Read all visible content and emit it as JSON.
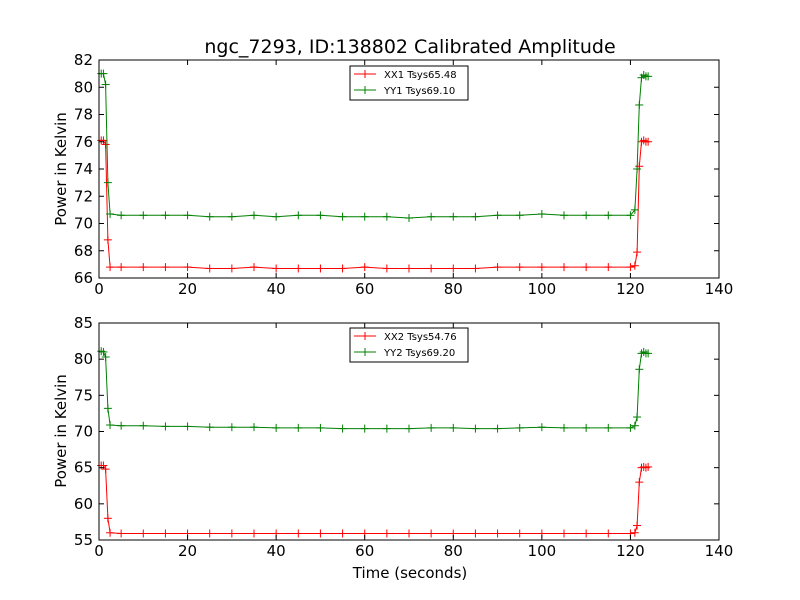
{
  "figure": {
    "title": "ngc_7293, ID:138802 Calibrated Amplitude",
    "xlabel": "Time (seconds)"
  },
  "chart_data": [
    {
      "type": "line",
      "title": "ngc_7293, ID:138802 Calibrated Amplitude",
      "xlabel": "",
      "ylabel": "Power in Kelvin",
      "xlim": [
        0,
        140
      ],
      "ylim": [
        66,
        82
      ],
      "xticks": [
        0,
        20,
        40,
        60,
        80,
        100,
        120,
        140
      ],
      "yticks": [
        66,
        68,
        70,
        72,
        74,
        76,
        78,
        80,
        82
      ],
      "grid": false,
      "legend_position": "top-center",
      "series": [
        {
          "name": "XX1 Tsys65.48",
          "color": "#ff0000",
          "marker": "plus",
          "x": [
            0.5,
            1.0,
            1.5,
            2.0,
            2.5,
            5,
            10,
            15,
            20,
            25,
            30,
            35,
            40,
            45,
            50,
            55,
            60,
            65,
            70,
            75,
            80,
            85,
            90,
            95,
            100,
            105,
            110,
            115,
            120,
            121.0,
            121.5,
            122.0,
            122.5,
            123.0,
            123.5,
            124.0
          ],
          "values": [
            76.1,
            76.1,
            75.8,
            68.8,
            66.8,
            66.8,
            66.8,
            66.8,
            66.8,
            66.7,
            66.7,
            66.8,
            66.7,
            66.7,
            66.7,
            66.7,
            66.8,
            66.7,
            66.7,
            66.7,
            66.7,
            66.7,
            66.8,
            66.8,
            66.8,
            66.8,
            66.8,
            66.8,
            66.8,
            66.9,
            67.9,
            74.2,
            76.0,
            76.1,
            76.0,
            76.0
          ]
        },
        {
          "name": "YY1 Tsys69.10",
          "color": "#008000",
          "marker": "plus",
          "x": [
            0.5,
            1.0,
            1.5,
            2.0,
            2.5,
            5,
            10,
            15,
            20,
            25,
            30,
            35,
            40,
            45,
            50,
            55,
            60,
            65,
            70,
            75,
            80,
            85,
            90,
            95,
            100,
            105,
            110,
            115,
            120,
            121.0,
            121.5,
            122.0,
            122.5,
            123.0,
            123.5,
            124.0
          ],
          "values": [
            81.0,
            81.0,
            80.2,
            73.0,
            70.7,
            70.6,
            70.6,
            70.6,
            70.6,
            70.5,
            70.5,
            70.6,
            70.5,
            70.6,
            70.6,
            70.5,
            70.5,
            70.5,
            70.4,
            70.5,
            70.5,
            70.5,
            70.6,
            70.6,
            70.7,
            70.6,
            70.6,
            70.6,
            70.6,
            71.0,
            74.0,
            78.7,
            80.7,
            80.9,
            80.8,
            80.8
          ]
        }
      ]
    },
    {
      "type": "line",
      "title": "",
      "xlabel": "Time (seconds)",
      "ylabel": "Power in Kelvin",
      "xlim": [
        0,
        140
      ],
      "ylim": [
        55,
        85
      ],
      "xticks": [
        0,
        20,
        40,
        60,
        80,
        100,
        120,
        140
      ],
      "yticks": [
        55,
        60,
        65,
        70,
        75,
        80,
        85
      ],
      "grid": false,
      "legend_position": "top-center",
      "series": [
        {
          "name": "XX2 Tsys54.76",
          "color": "#ff0000",
          "marker": "plus",
          "x": [
            0.5,
            1.0,
            1.5,
            2.0,
            2.5,
            5,
            10,
            15,
            20,
            25,
            30,
            35,
            40,
            45,
            50,
            55,
            60,
            65,
            70,
            75,
            80,
            85,
            90,
            95,
            100,
            105,
            110,
            115,
            120,
            121.0,
            121.5,
            122.0,
            122.5,
            123.0,
            123.5,
            124.0
          ],
          "values": [
            65.3,
            65.3,
            64.8,
            58.0,
            56.0,
            55.9,
            55.9,
            55.9,
            55.9,
            55.9,
            55.9,
            55.9,
            55.9,
            55.9,
            55.9,
            55.9,
            55.9,
            55.9,
            55.9,
            55.9,
            55.9,
            55.9,
            55.9,
            55.9,
            55.9,
            55.9,
            55.9,
            55.9,
            55.9,
            56.0,
            57.0,
            63.0,
            65.0,
            65.1,
            65.0,
            65.1
          ]
        },
        {
          "name": "YY2 Tsys69.20",
          "color": "#008000",
          "marker": "plus",
          "x": [
            0.5,
            1.0,
            1.5,
            2.0,
            2.5,
            5,
            10,
            15,
            20,
            25,
            30,
            35,
            40,
            45,
            50,
            55,
            60,
            65,
            70,
            75,
            80,
            85,
            90,
            95,
            100,
            105,
            110,
            115,
            120,
            121.0,
            121.5,
            122.0,
            122.5,
            123.0,
            123.5,
            124.0
          ],
          "values": [
            81.1,
            81.0,
            80.3,
            73.2,
            70.9,
            70.8,
            70.8,
            70.7,
            70.7,
            70.6,
            70.6,
            70.6,
            70.5,
            70.5,
            70.5,
            70.4,
            70.4,
            70.4,
            70.4,
            70.5,
            70.5,
            70.4,
            70.4,
            70.5,
            70.6,
            70.5,
            70.5,
            70.5,
            70.5,
            70.8,
            72.0,
            78.6,
            80.8,
            81.0,
            80.8,
            80.8
          ]
        }
      ]
    }
  ]
}
